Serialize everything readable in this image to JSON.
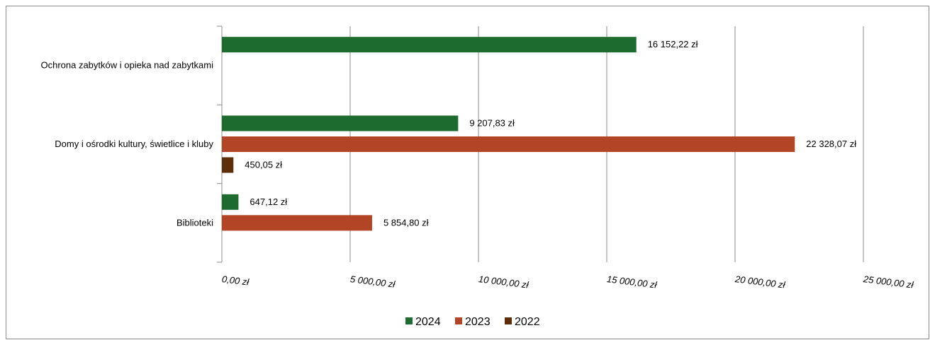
{
  "chart_data": {
    "type": "bar",
    "orientation": "horizontal",
    "title": "",
    "xlabel": "",
    "ylabel": "",
    "categories": [
      "Ochrona zabytków i opieka nad zabytkami",
      "Domy i ośrodki kultury, świetlice i kluby",
      "Biblioteki"
    ],
    "series": [
      {
        "name": "2024",
        "color": "#1e6b2f",
        "values": [
          16152.22,
          9207.83,
          647.12
        ],
        "labels": [
          "16 152,22  zł",
          "9 207,83  zł",
          "647,12  zł"
        ]
      },
      {
        "name": "2023",
        "color": "#b34527",
        "values": [
          null,
          22328.07,
          5854.8
        ],
        "labels": [
          "",
          "22 328,07  zł",
          "5 854,80  zł"
        ]
      },
      {
        "name": "2022",
        "color": "#5e2e0b",
        "values": [
          null,
          450.05,
          null
        ],
        "labels": [
          "",
          "450,05  zł",
          ""
        ]
      }
    ],
    "xlim": [
      0,
      25000
    ],
    "ticks": [
      0,
      5000,
      10000,
      15000,
      20000,
      25000
    ],
    "tick_labels": [
      "0,00  zł",
      "5 000,00  zł",
      "10 000,00  zł",
      "15 000,00  zł",
      "20 000,00  zł",
      "25 000,00  zł"
    ],
    "grid": true,
    "legend": "bottom"
  }
}
